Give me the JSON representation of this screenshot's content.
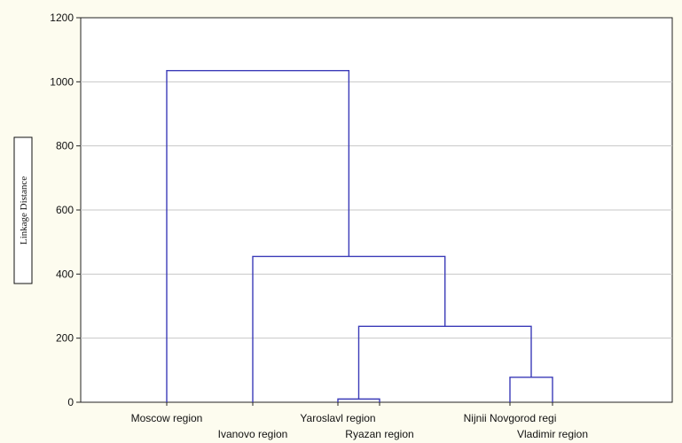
{
  "chart_data": {
    "type": "dendrogram",
    "title": "",
    "xlabel": "",
    "ylabel": "Linkage Distance",
    "ylim": [
      0,
      1200
    ],
    "yticks": [
      "0",
      "200",
      "400",
      "600",
      "800",
      "1000",
      "1200"
    ],
    "leaves": [
      "Moscow region",
      "Ivanovo region",
      "Yaroslavl region",
      "Ryazan region",
      "Nijnii Novgorod regi",
      "Vladimir region"
    ],
    "merges": [
      {
        "left": "Yaroslavl region",
        "right": "Ryazan region",
        "distance": 10
      },
      {
        "left": "Nijnii Novgorod regi",
        "right": "Vladimir region",
        "distance": 78
      },
      {
        "left": "Yaroslavl region + Ryazan region",
        "right": "Nijnii Novgorod regi + Vladimir region",
        "distance": 237
      },
      {
        "left": "Ivanovo region",
        "right": "Yaroslavl region + Ryazan region + Nijnii Novgorod regi + Vladimir region",
        "distance": 455
      },
      {
        "left": "Moscow region",
        "right": "Ivanovo region + Yaroslavl region + Ryazan region + Nijnii Novgorod regi + Vladimir region",
        "distance": 1035
      }
    ],
    "grid": true,
    "line_color": "#3b3bb8",
    "grid_color": "#c7c7c7"
  }
}
